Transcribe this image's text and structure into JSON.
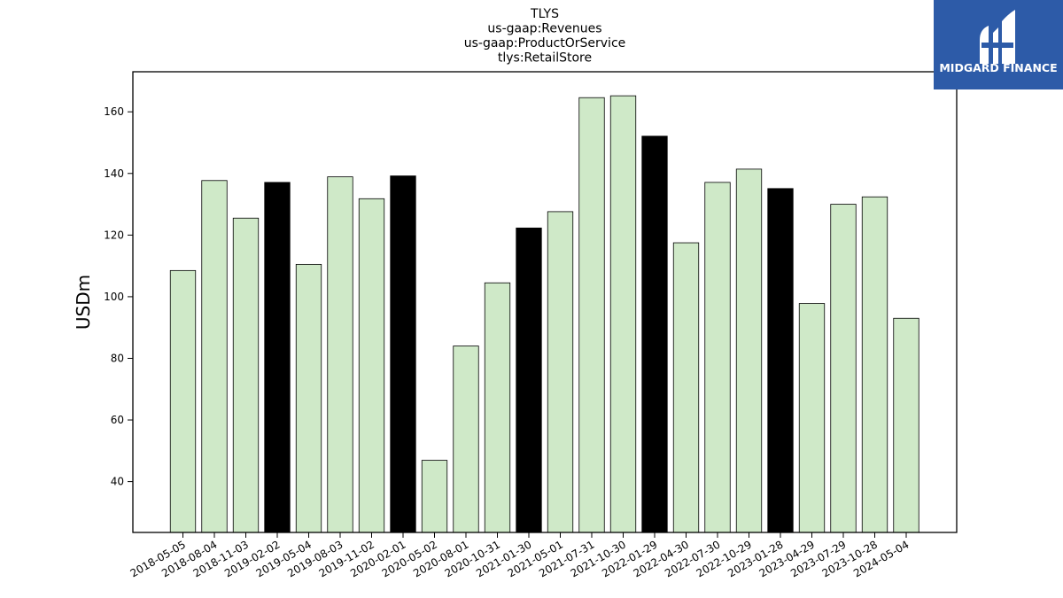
{
  "chart_data": {
    "type": "bar",
    "title_lines": [
      "TLYS",
      "us-gaap:Revenues",
      "us-gaap:ProductOrService",
      "tlys:RetailStore"
    ],
    "xlabel": "",
    "ylabel": "USDm",
    "ylim": [
      23.5,
      173
    ],
    "yticks": [
      40,
      60,
      80,
      100,
      120,
      140,
      160
    ],
    "grid": false,
    "categories": [
      "2018-05-05",
      "2018-08-04",
      "2018-11-03",
      "2019-02-02",
      "2019-05-04",
      "2019-08-03",
      "2019-11-02",
      "2020-02-01",
      "2020-05-02",
      "2020-08-01",
      "2020-10-31",
      "2021-01-30",
      "2021-05-01",
      "2021-07-31",
      "2021-10-30",
      "2022-01-29",
      "2022-04-30",
      "2022-07-30",
      "2022-10-29",
      "2023-01-28",
      "2023-04-29",
      "2023-07-29",
      "2023-10-28",
      "2024-05-04"
    ],
    "values": [
      108.5,
      137.7,
      125.5,
      137.1,
      110.5,
      138.9,
      131.8,
      139.2,
      46.9,
      84.0,
      104.5,
      122.3,
      127.6,
      164.6,
      165.2,
      152.1,
      117.5,
      137.1,
      141.4,
      135.1,
      97.8,
      130.0,
      132.4,
      93.0
    ],
    "highlight": [
      false,
      false,
      false,
      true,
      false,
      false,
      false,
      true,
      false,
      false,
      false,
      true,
      false,
      false,
      false,
      true,
      false,
      false,
      false,
      true,
      false,
      false,
      false,
      false
    ],
    "colors": {
      "normal": "#cfe9c8",
      "highlight": "#000000",
      "edge": "#000000"
    }
  },
  "logo": {
    "text": "MIDGARD FINANCE",
    "background": "#2d5ba8"
  }
}
